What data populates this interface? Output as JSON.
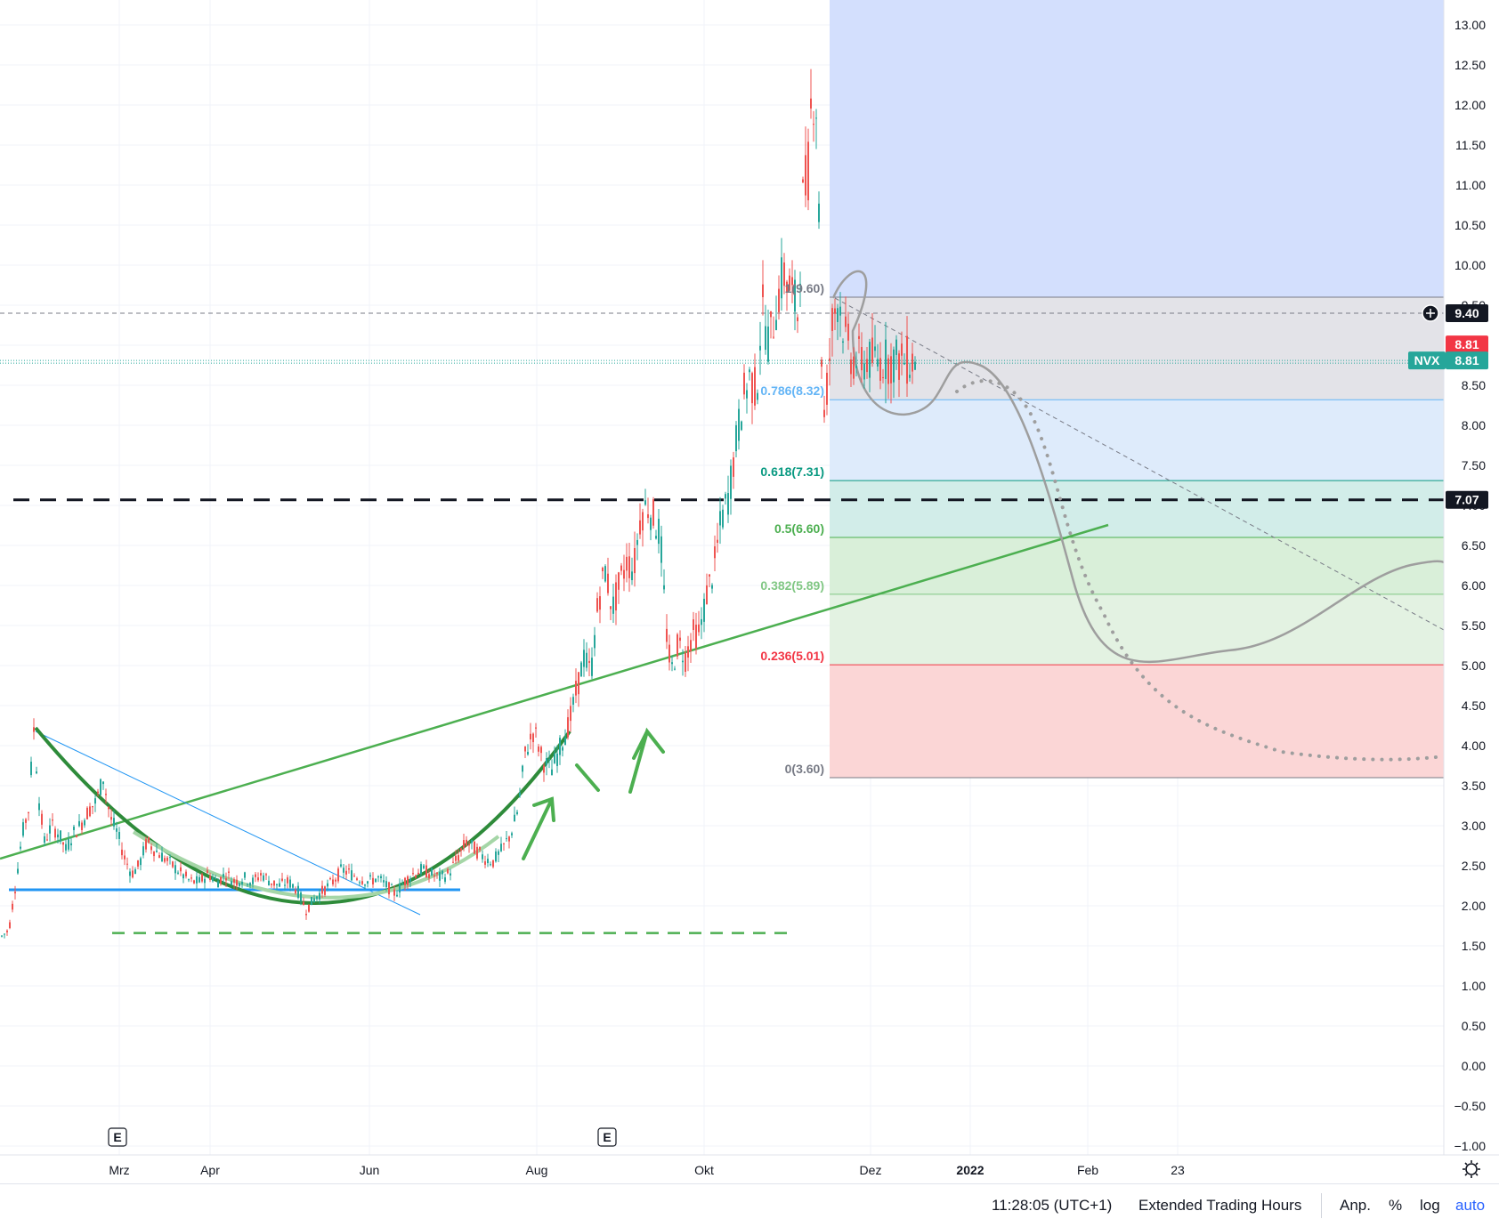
{
  "chart_data": {
    "type": "candlestick",
    "symbol": "NVX",
    "ylim": [
      -1.0,
      13.0
    ],
    "y_ticks": [
      "13.00",
      "12.50",
      "12.00",
      "11.50",
      "11.00",
      "10.50",
      "10.00",
      "9.50",
      "9.00",
      "8.50",
      "8.00",
      "7.50",
      "7.00",
      "6.50",
      "6.00",
      "5.50",
      "5.00",
      "4.50",
      "4.00",
      "3.50",
      "3.00",
      "2.50",
      "2.00",
      "1.50",
      "1.00",
      "0.50",
      "0.00",
      "−0.50",
      "−1.00"
    ],
    "x_labels": [
      "Mrz",
      "Apr",
      "Jun",
      "Aug",
      "Okt",
      "Dez",
      "2022",
      "Feb",
      "23"
    ],
    "price_path": [
      [
        0,
        1.6
      ],
      [
        10,
        1.7
      ],
      [
        18,
        2.3
      ],
      [
        25,
        2.9
      ],
      [
        32,
        3.2
      ],
      [
        38,
        4.2
      ],
      [
        44,
        3.3
      ],
      [
        50,
        2.8
      ],
      [
        58,
        3.0
      ],
      [
        66,
        2.9
      ],
      [
        74,
        2.7
      ],
      [
        82,
        2.9
      ],
      [
        90,
        3.0
      ],
      [
        100,
        3.2
      ],
      [
        108,
        3.3
      ],
      [
        116,
        3.6
      ],
      [
        124,
        3.1
      ],
      [
        132,
        2.9
      ],
      [
        140,
        2.6
      ],
      [
        148,
        2.4
      ],
      [
        156,
        2.5
      ],
      [
        165,
        2.8
      ],
      [
        174,
        2.7
      ],
      [
        184,
        2.6
      ],
      [
        194,
        2.5
      ],
      [
        204,
        2.4
      ],
      [
        214,
        2.3
      ],
      [
        224,
        2.3
      ],
      [
        234,
        2.4
      ],
      [
        244,
        2.3
      ],
      [
        254,
        2.4
      ],
      [
        264,
        2.3
      ],
      [
        274,
        2.35
      ],
      [
        284,
        2.3
      ],
      [
        294,
        2.4
      ],
      [
        304,
        2.3
      ],
      [
        314,
        2.25
      ],
      [
        324,
        2.3
      ],
      [
        334,
        2.2
      ],
      [
        344,
        1.95
      ],
      [
        354,
        2.1
      ],
      [
        364,
        2.2
      ],
      [
        374,
        2.3
      ],
      [
        384,
        2.45
      ],
      [
        394,
        2.4
      ],
      [
        404,
        2.35
      ],
      [
        414,
        2.3
      ],
      [
        424,
        2.35
      ],
      [
        434,
        2.25
      ],
      [
        444,
        2.15
      ],
      [
        454,
        2.3
      ],
      [
        464,
        2.4
      ],
      [
        474,
        2.45
      ],
      [
        484,
        2.4
      ],
      [
        494,
        2.35
      ],
      [
        504,
        2.4
      ],
      [
        514,
        2.6
      ],
      [
        524,
        2.8
      ],
      [
        534,
        2.7
      ],
      [
        544,
        2.6
      ],
      [
        554,
        2.55
      ],
      [
        564,
        2.7
      ],
      [
        574,
        2.9
      ],
      [
        582,
        3.2
      ],
      [
        590,
        3.9
      ],
      [
        600,
        4.2
      ],
      [
        610,
        3.8
      ],
      [
        620,
        3.7
      ],
      [
        630,
        4.0
      ],
      [
        640,
        4.3
      ],
      [
        648,
        4.7
      ],
      [
        656,
        5.1
      ],
      [
        664,
        4.9
      ],
      [
        672,
        5.8
      ],
      [
        680,
        6.2
      ],
      [
        688,
        5.7
      ],
      [
        696,
        6.0
      ],
      [
        704,
        6.3
      ],
      [
        712,
        6.2
      ],
      [
        720,
        6.9
      ],
      [
        728,
        7.0
      ],
      [
        736,
        6.8
      ],
      [
        742,
        6.6
      ],
      [
        748,
        5.5
      ],
      [
        754,
        4.9
      ],
      [
        762,
        5.3
      ],
      [
        770,
        5.1
      ],
      [
        778,
        5.4
      ],
      [
        786,
        5.4
      ],
      [
        794,
        5.9
      ],
      [
        802,
        6.2
      ],
      [
        810,
        6.8
      ],
      [
        818,
        7.1
      ],
      [
        826,
        7.7
      ],
      [
        834,
        8.3
      ],
      [
        842,
        8.6
      ],
      [
        850,
        8.4
      ],
      [
        856,
        9.5
      ],
      [
        864,
        9.0
      ],
      [
        872,
        9.5
      ],
      [
        880,
        9.9
      ],
      [
        888,
        9.7
      ],
      [
        896,
        9.4
      ],
      [
        902,
        10.8
      ],
      [
        908,
        11.2
      ],
      [
        912,
        12.2
      ],
      [
        918,
        12.0
      ],
      [
        922,
        9.2
      ],
      [
        926,
        8.1
      ],
      [
        930,
        8.6
      ],
      [
        936,
        9.4
      ],
      [
        942,
        9.6
      ],
      [
        948,
        9.2
      ],
      [
        952,
        9.0
      ],
      [
        958,
        8.81
      ]
    ],
    "fib_levels": [
      {
        "ratio": "1",
        "price": 9.6,
        "label": "1(9.60)",
        "color": "#787b86"
      },
      {
        "ratio": "0.786",
        "price": 8.32,
        "label": "0.786(8.32)",
        "color": "#64b5f6"
      },
      {
        "ratio": "0.618",
        "price": 7.31,
        "label": "0.618(7.31)",
        "color": "#089981"
      },
      {
        "ratio": "0.5",
        "price": 6.6,
        "label": "0.5(6.60)",
        "color": "#4caf50"
      },
      {
        "ratio": "0.382",
        "price": 5.89,
        "label": "0.382(5.89)",
        "color": "#81c784"
      },
      {
        "ratio": "0.236",
        "price": 5.01,
        "label": "0.236(5.01)",
        "color": "#f23645"
      },
      {
        "ratio": "0",
        "price": 3.6,
        "label": "0(3.60)",
        "color": "#787b86"
      }
    ],
    "horizontal_lines": [
      {
        "price": 9.4,
        "style": "dashed-thin",
        "color": "#787b86"
      },
      {
        "price": 7.07,
        "style": "dashed-bold",
        "color": "#131722"
      },
      {
        "price": 8.81,
        "style": "dotted",
        "color": "#26a69a"
      },
      {
        "price": 2.2,
        "style": "solid",
        "color": "#2196f3"
      },
      {
        "price": 1.66,
        "style": "dashed",
        "color": "#4caf50"
      }
    ],
    "price_badges": [
      {
        "text": "9.40",
        "price": 9.4,
        "bg": "#131722"
      },
      {
        "text": "8.81",
        "price": 8.81,
        "bg": "#f23645"
      },
      {
        "text": "8.81",
        "price": 8.81,
        "bg": "#26a69a",
        "symbol": "NVX"
      },
      {
        "text": "7.07",
        "price": 7.07,
        "bg": "#131722"
      }
    ],
    "earnings_markers": [
      "E",
      "E"
    ],
    "colors": {
      "up": "#26a69a",
      "down": "#ef5350",
      "fib_blue": "#d3dffd",
      "fib_grey": "#e6e6ea",
      "fib_red": "#fbd6d6"
    }
  },
  "footer": {
    "time": "11:28:05 (UTC+1)",
    "session": "Extended Trading Hours",
    "adj": "Anp.",
    "percent": "%",
    "log": "log",
    "auto": "auto"
  }
}
